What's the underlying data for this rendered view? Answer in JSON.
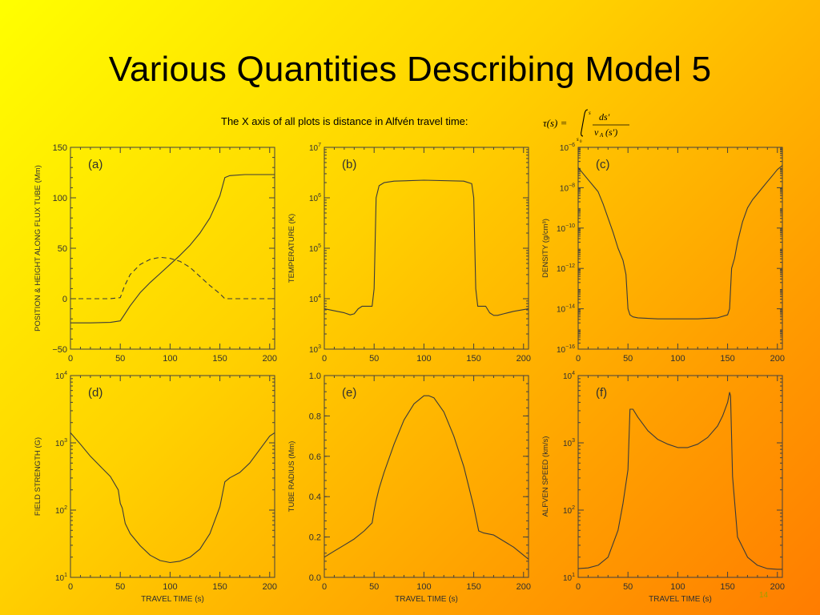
{
  "slide": {
    "title": "Various Quantities Describing Model 5",
    "subtitle": "The X axis of all plots is distance in Alfvén travel time:",
    "formula": {
      "lhs": "τ(s) =",
      "upper": "s",
      "lower": "s",
      "lower_sub": "0",
      "numerator": "ds′",
      "denominator": "v",
      "denominator_sub": "A",
      "denominator_arg": "(s′)"
    },
    "page_number": "14"
  },
  "chart_data": [
    {
      "id": "a",
      "type": "line",
      "panel_label": "(a)",
      "xlabel": "",
      "ylabel": "POSITION & HEIGHT ALONG FLUX TUBE (Mm)",
      "xlim": [
        0,
        205
      ],
      "ylim": [
        -50,
        150
      ],
      "yscale": "linear",
      "xticks": [
        0,
        50,
        100,
        150,
        200
      ],
      "yticks": [
        -50,
        0,
        50,
        100,
        150
      ],
      "xticklabels": [
        "0",
        "50",
        "100",
        "150",
        "200"
      ],
      "yticklabels": [
        "−50",
        "0",
        "50",
        "100",
        "150"
      ],
      "series": [
        {
          "style": "solid",
          "x": [
            0,
            20,
            40,
            50,
            54,
            60,
            70,
            80,
            90,
            100,
            110,
            120,
            130,
            140,
            150,
            155,
            160,
            175,
            190,
            205
          ],
          "y": [
            -24,
            -24,
            -23.5,
            -22,
            -16,
            -7,
            6,
            16,
            25,
            34,
            43,
            53,
            65,
            80,
            102,
            120,
            122,
            123,
            123,
            123
          ]
        },
        {
          "style": "dashed",
          "x": [
            0,
            20,
            40,
            50,
            54,
            60,
            70,
            80,
            90,
            100,
            110,
            120,
            130,
            140,
            150,
            155,
            160,
            175,
            190,
            205
          ],
          "y": [
            0,
            0,
            0,
            1,
            12,
            24,
            34,
            39,
            41,
            40,
            37,
            31,
            22,
            13,
            5,
            0,
            0,
            0,
            0,
            0
          ]
        }
      ]
    },
    {
      "id": "b",
      "type": "line",
      "panel_label": "(b)",
      "xlabel": "",
      "ylabel": "TEMPERATURE (K)",
      "xlim": [
        0,
        205
      ],
      "ylim": [
        3,
        7
      ],
      "yscale": "log",
      "xticks": [
        0,
        50,
        100,
        150,
        200
      ],
      "yticks": [
        3,
        4,
        5,
        6,
        7
      ],
      "xticklabels": [
        "0",
        "50",
        "100",
        "150",
        "200"
      ],
      "yticklabels_base": "10",
      "yticklabels_exp": [
        "3",
        "4",
        "5",
        "6",
        "7"
      ],
      "series": [
        {
          "style": "solid",
          "x": [
            0,
            10,
            20,
            26,
            30,
            34,
            38,
            48,
            50,
            52,
            55,
            60,
            70,
            100,
            140,
            148,
            150,
            152,
            154,
            162,
            166,
            170,
            174,
            180,
            190,
            205
          ],
          "y": [
            3.8,
            3.76,
            3.72,
            3.68,
            3.7,
            3.8,
            3.85,
            3.85,
            4.2,
            6.0,
            6.24,
            6.3,
            6.33,
            6.35,
            6.33,
            6.28,
            6.0,
            4.2,
            3.85,
            3.85,
            3.72,
            3.67,
            3.67,
            3.7,
            3.75,
            3.8
          ]
        }
      ]
    },
    {
      "id": "c",
      "type": "line",
      "panel_label": "(c)",
      "xlabel": "",
      "ylabel": "DENSITY (g/cm³)",
      "xlim": [
        0,
        205
      ],
      "ylim": [
        -16,
        -6
      ],
      "yscale": "log",
      "xticks": [
        0,
        50,
        100,
        150,
        200
      ],
      "yticks": [
        -16,
        -14,
        -12,
        -10,
        -8,
        -6
      ],
      "xticklabels": [
        "0",
        "50",
        "100",
        "150",
        "200"
      ],
      "yticklabels_base": "10",
      "yticklabels_exp": [
        "−16",
        "−14",
        "−12",
        "−10",
        "−8",
        "−6"
      ],
      "series": [
        {
          "style": "solid",
          "x": [
            0,
            5,
            10,
            15,
            20,
            25,
            30,
            35,
            40,
            45,
            48,
            50,
            52,
            55,
            60,
            80,
            100,
            120,
            140,
            150,
            152,
            154,
            157,
            160,
            165,
            170,
            175,
            180,
            185,
            190,
            195,
            200,
            205
          ],
          "y": [
            -7.0,
            -7.3,
            -7.6,
            -7.9,
            -8.2,
            -8.8,
            -9.5,
            -10.2,
            -11.0,
            -11.6,
            -12.3,
            -14.0,
            -14.3,
            -14.4,
            -14.45,
            -14.5,
            -14.5,
            -14.5,
            -14.45,
            -14.3,
            -14.0,
            -12.0,
            -11.5,
            -10.7,
            -9.7,
            -9.0,
            -8.6,
            -8.3,
            -8.0,
            -7.7,
            -7.4,
            -7.1,
            -6.9
          ]
        }
      ]
    },
    {
      "id": "d",
      "type": "line",
      "panel_label": "(d)",
      "xlabel": "TRAVEL TIME (s)",
      "ylabel": "FIELD STRENGTH (G)",
      "xlim": [
        0,
        205
      ],
      "ylim": [
        1,
        4
      ],
      "yscale": "log",
      "xticks": [
        0,
        50,
        100,
        150,
        200
      ],
      "yticks": [
        1,
        2,
        3,
        4
      ],
      "xticklabels": [
        "0",
        "50",
        "100",
        "150",
        "200"
      ],
      "yticklabels_base": "10",
      "yticklabels_exp": [
        "1",
        "2",
        "3",
        "4"
      ],
      "series": [
        {
          "style": "solid",
          "x": [
            0,
            10,
            20,
            30,
            40,
            48,
            50,
            52,
            55,
            60,
            70,
            80,
            90,
            100,
            110,
            120,
            130,
            140,
            150,
            155,
            160,
            170,
            180,
            190,
            200,
            205
          ],
          "y": [
            3.15,
            2.98,
            2.8,
            2.65,
            2.5,
            2.3,
            2.1,
            2.03,
            1.8,
            1.65,
            1.47,
            1.33,
            1.25,
            1.22,
            1.24,
            1.3,
            1.42,
            1.65,
            2.05,
            2.42,
            2.48,
            2.56,
            2.7,
            2.9,
            3.1,
            3.15
          ]
        }
      ]
    },
    {
      "id": "e",
      "type": "line",
      "panel_label": "(e)",
      "xlabel": "TRAVEL TIME (s)",
      "ylabel": "TUBE RADIUS (Mm)",
      "xlim": [
        0,
        205
      ],
      "ylim": [
        0,
        1.0
      ],
      "yscale": "linear",
      "xticks": [
        0,
        50,
        100,
        150,
        200
      ],
      "yticks": [
        0,
        0.2,
        0.4,
        0.6,
        0.8,
        1.0
      ],
      "xticklabels": [
        "0",
        "50",
        "100",
        "150",
        "200"
      ],
      "yticklabels": [
        "0.0",
        "0.2",
        "0.4",
        "0.6",
        "0.8",
        "1.0"
      ],
      "series": [
        {
          "style": "solid",
          "x": [
            0,
            10,
            20,
            30,
            40,
            48,
            50,
            52,
            55,
            60,
            70,
            80,
            90,
            100,
            105,
            110,
            120,
            130,
            140,
            150,
            155,
            160,
            170,
            180,
            190,
            200,
            205
          ],
          "y": [
            0.1,
            0.13,
            0.16,
            0.19,
            0.23,
            0.27,
            0.33,
            0.38,
            0.44,
            0.52,
            0.66,
            0.78,
            0.86,
            0.9,
            0.9,
            0.89,
            0.82,
            0.7,
            0.55,
            0.35,
            0.23,
            0.22,
            0.21,
            0.18,
            0.15,
            0.11,
            0.09
          ]
        }
      ]
    },
    {
      "id": "f",
      "type": "line",
      "panel_label": "(f)",
      "xlabel": "TRAVEL TIME (s)",
      "ylabel": "ALFVEN SPEED (km/s)",
      "xlim": [
        0,
        205
      ],
      "ylim": [
        1,
        4
      ],
      "yscale": "log",
      "xticks": [
        0,
        50,
        100,
        150,
        200
      ],
      "yticks": [
        1,
        2,
        3,
        4
      ],
      "xticklabels": [
        "0",
        "50",
        "100",
        "150",
        "200"
      ],
      "yticklabels_base": "10",
      "yticklabels_exp": [
        "1",
        "2",
        "3",
        "4"
      ],
      "series": [
        {
          "style": "solid",
          "x": [
            0,
            10,
            20,
            30,
            40,
            45,
            50,
            52,
            55,
            60,
            70,
            80,
            90,
            100,
            110,
            120,
            130,
            140,
            145,
            150,
            152,
            153,
            155,
            160,
            170,
            180,
            190,
            200,
            205
          ],
          "y": [
            1.13,
            1.14,
            1.18,
            1.3,
            1.7,
            2.1,
            2.6,
            3.5,
            3.5,
            3.38,
            3.18,
            3.05,
            2.98,
            2.93,
            2.93,
            2.98,
            3.08,
            3.25,
            3.4,
            3.6,
            3.75,
            3.7,
            2.5,
            1.6,
            1.3,
            1.18,
            1.13,
            1.12,
            1.12
          ]
        }
      ]
    }
  ]
}
